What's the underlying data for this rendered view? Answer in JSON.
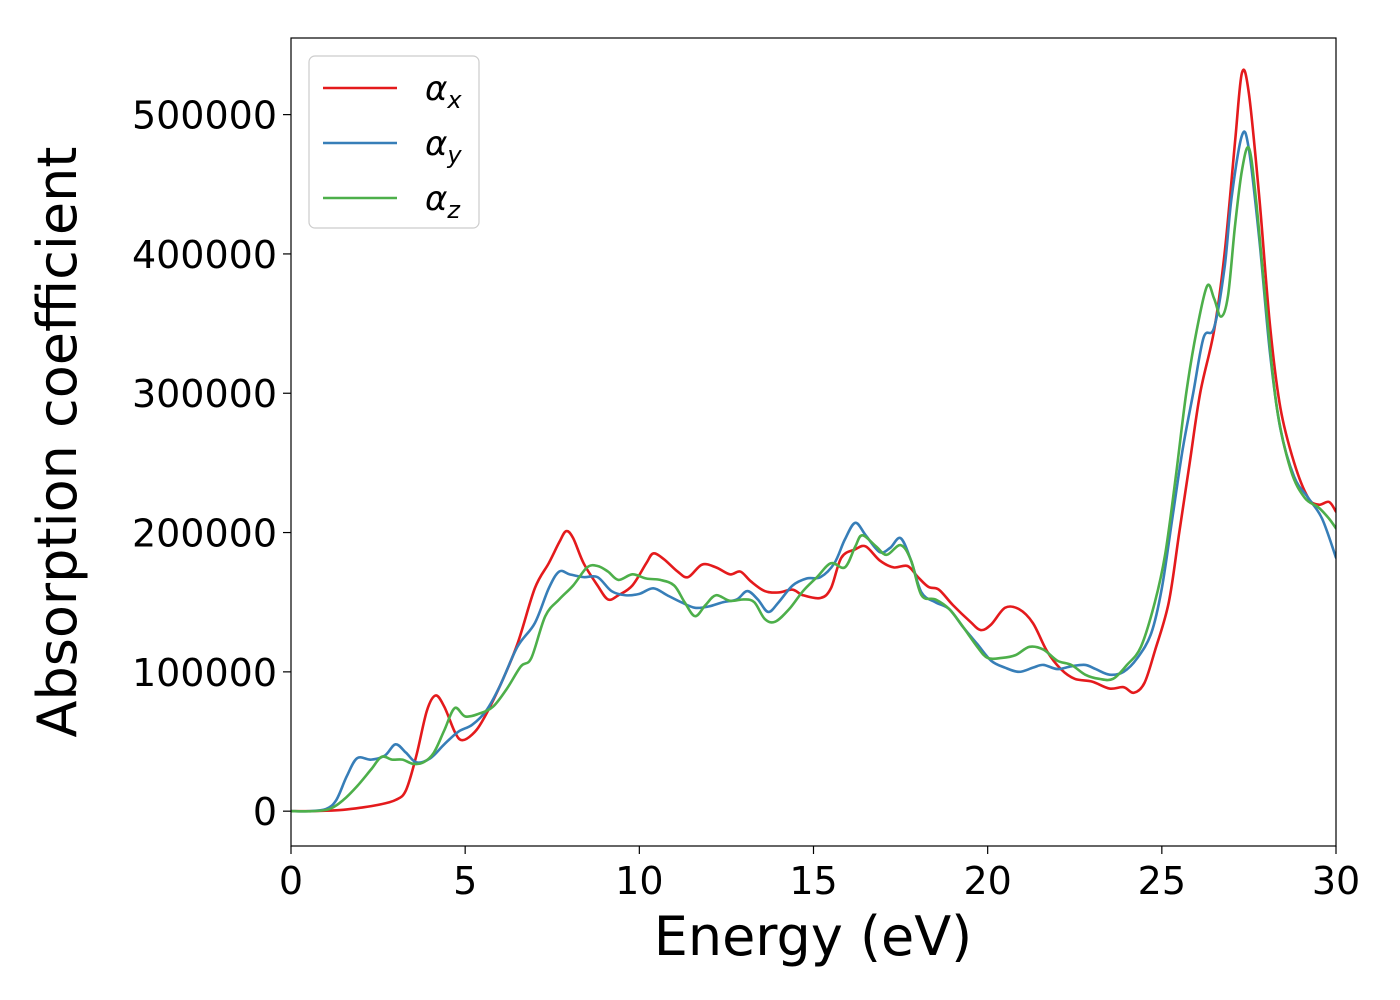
{
  "chart_data": {
    "type": "line",
    "title": "",
    "xlabel": "Energy (eV)",
    "ylabel": "Absorption coefficient",
    "xlim": [
      0,
      30
    ],
    "ylim": [
      -25000,
      555000
    ],
    "xticks": [
      0,
      5,
      10,
      15,
      20,
      25,
      30
    ],
    "yticks": [
      0,
      100000,
      200000,
      300000,
      400000,
      500000
    ],
    "grid": false,
    "legend_position": "top-left",
    "series": [
      {
        "name": "α",
        "subscript": "x",
        "color": "#e41a1c",
        "points": [
          [
            0,
            0
          ],
          [
            0.5,
            0
          ],
          [
            1,
            300
          ],
          [
            1.5,
            1000
          ],
          [
            2,
            2500
          ],
          [
            2.5,
            4500
          ],
          [
            3,
            8000
          ],
          [
            3.3,
            15000
          ],
          [
            3.6,
            40000
          ],
          [
            3.9,
            72000
          ],
          [
            4.15,
            83000
          ],
          [
            4.4,
            75000
          ],
          [
            4.7,
            57000
          ],
          [
            4.9,
            51000
          ],
          [
            5.2,
            55000
          ],
          [
            5.5,
            65000
          ],
          [
            6,
            90000
          ],
          [
            6.5,
            120000
          ],
          [
            7,
            160000
          ],
          [
            7.4,
            178000
          ],
          [
            7.7,
            193000
          ],
          [
            7.9,
            201000
          ],
          [
            8.1,
            196000
          ],
          [
            8.4,
            178000
          ],
          [
            8.8,
            162000
          ],
          [
            9.1,
            152000
          ],
          [
            9.4,
            155000
          ],
          [
            9.8,
            162000
          ],
          [
            10.2,
            178000
          ],
          [
            10.4,
            185000
          ],
          [
            10.7,
            181000
          ],
          [
            11.1,
            172000
          ],
          [
            11.4,
            168000
          ],
          [
            11.8,
            177000
          ],
          [
            12.2,
            175000
          ],
          [
            12.6,
            170000
          ],
          [
            12.9,
            172000
          ],
          [
            13.2,
            165000
          ],
          [
            13.6,
            158000
          ],
          [
            14,
            157000
          ],
          [
            14.4,
            159000
          ],
          [
            14.7,
            155000
          ],
          [
            15.2,
            153000
          ],
          [
            15.5,
            160000
          ],
          [
            15.8,
            182000
          ],
          [
            16.2,
            188000
          ],
          [
            16.5,
            190000
          ],
          [
            16.9,
            180000
          ],
          [
            17.3,
            175000
          ],
          [
            17.7,
            176000
          ],
          [
            18,
            168000
          ],
          [
            18.3,
            161000
          ],
          [
            18.6,
            159000
          ],
          [
            19,
            148000
          ],
          [
            19.5,
            136000
          ],
          [
            19.8,
            130000
          ],
          [
            20.1,
            134000
          ],
          [
            20.5,
            146000
          ],
          [
            20.9,
            145000
          ],
          [
            21.3,
            135000
          ],
          [
            21.7,
            115000
          ],
          [
            22.1,
            102000
          ],
          [
            22.5,
            95000
          ],
          [
            23,
            93000
          ],
          [
            23.5,
            88000
          ],
          [
            23.9,
            89000
          ],
          [
            24.2,
            85000
          ],
          [
            24.5,
            92000
          ],
          [
            24.8,
            115000
          ],
          [
            25.2,
            150000
          ],
          [
            25.5,
            200000
          ],
          [
            25.8,
            250000
          ],
          [
            26.1,
            300000
          ],
          [
            26.5,
            345000
          ],
          [
            26.8,
            400000
          ],
          [
            27.1,
            480000
          ],
          [
            27.3,
            530000
          ],
          [
            27.5,
            515000
          ],
          [
            27.8,
            440000
          ],
          [
            28.1,
            350000
          ],
          [
            28.4,
            290000
          ],
          [
            28.8,
            250000
          ],
          [
            29.2,
            225000
          ],
          [
            29.5,
            220000
          ],
          [
            29.8,
            222000
          ],
          [
            30,
            215000
          ]
        ]
      },
      {
        "name": "α",
        "subscript": "y",
        "color": "#377eb8",
        "points": [
          [
            0,
            0
          ],
          [
            0.5,
            0
          ],
          [
            1,
            1500
          ],
          [
            1.3,
            8000
          ],
          [
            1.6,
            25000
          ],
          [
            1.9,
            38000
          ],
          [
            2.3,
            37000
          ],
          [
            2.7,
            40000
          ],
          [
            3,
            48000
          ],
          [
            3.3,
            42000
          ],
          [
            3.6,
            35000
          ],
          [
            4,
            38000
          ],
          [
            4.4,
            48000
          ],
          [
            4.8,
            57000
          ],
          [
            5.2,
            62000
          ],
          [
            5.6,
            72000
          ],
          [
            6,
            90000
          ],
          [
            6.5,
            118000
          ],
          [
            7,
            135000
          ],
          [
            7.4,
            160000
          ],
          [
            7.7,
            172000
          ],
          [
            8,
            170000
          ],
          [
            8.4,
            168000
          ],
          [
            8.8,
            168000
          ],
          [
            9.2,
            158000
          ],
          [
            9.6,
            155000
          ],
          [
            10,
            156000
          ],
          [
            10.4,
            160000
          ],
          [
            10.8,
            155000
          ],
          [
            11.2,
            150000
          ],
          [
            11.6,
            146000
          ],
          [
            12,
            147000
          ],
          [
            12.4,
            150000
          ],
          [
            12.8,
            152000
          ],
          [
            13.1,
            158000
          ],
          [
            13.4,
            152000
          ],
          [
            13.7,
            143000
          ],
          [
            14,
            150000
          ],
          [
            14.4,
            162000
          ],
          [
            14.8,
            167000
          ],
          [
            15.2,
            168000
          ],
          [
            15.6,
            178000
          ],
          [
            15.9,
            195000
          ],
          [
            16.2,
            207000
          ],
          [
            16.5,
            198000
          ],
          [
            16.9,
            186000
          ],
          [
            17.2,
            189000
          ],
          [
            17.5,
            196000
          ],
          [
            17.8,
            180000
          ],
          [
            18.1,
            157000
          ],
          [
            18.5,
            150000
          ],
          [
            18.9,
            145000
          ],
          [
            19.3,
            132000
          ],
          [
            19.7,
            120000
          ],
          [
            20.1,
            108000
          ],
          [
            20.5,
            103000
          ],
          [
            20.9,
            100000
          ],
          [
            21.3,
            103000
          ],
          [
            21.6,
            105000
          ],
          [
            22,
            102000
          ],
          [
            22.4,
            104000
          ],
          [
            22.8,
            105000
          ],
          [
            23.1,
            102000
          ],
          [
            23.5,
            98000
          ],
          [
            23.9,
            100000
          ],
          [
            24.3,
            110000
          ],
          [
            24.7,
            128000
          ],
          [
            25,
            160000
          ],
          [
            25.3,
            210000
          ],
          [
            25.6,
            260000
          ],
          [
            25.9,
            300000
          ],
          [
            26.2,
            340000
          ],
          [
            26.5,
            347000
          ],
          [
            26.8,
            390000
          ],
          [
            27,
            440000
          ],
          [
            27.3,
            485000
          ],
          [
            27.5,
            475000
          ],
          [
            27.8,
            410000
          ],
          [
            28.1,
            330000
          ],
          [
            28.4,
            275000
          ],
          [
            28.8,
            240000
          ],
          [
            29.2,
            225000
          ],
          [
            29.6,
            210000
          ],
          [
            30,
            182000
          ]
        ]
      },
      {
        "name": "α",
        "subscript": "z",
        "color": "#4daf4a",
        "points": [
          [
            0,
            0
          ],
          [
            0.6,
            0
          ],
          [
            1.1,
            1500
          ],
          [
            1.5,
            8000
          ],
          [
            1.9,
            18000
          ],
          [
            2.3,
            30000
          ],
          [
            2.6,
            39000
          ],
          [
            2.9,
            37000
          ],
          [
            3.2,
            37000
          ],
          [
            3.5,
            34000
          ],
          [
            3.8,
            35000
          ],
          [
            4.1,
            42000
          ],
          [
            4.4,
            58000
          ],
          [
            4.7,
            74000
          ],
          [
            5,
            68000
          ],
          [
            5.4,
            70000
          ],
          [
            5.8,
            75000
          ],
          [
            6.2,
            88000
          ],
          [
            6.6,
            104000
          ],
          [
            6.9,
            110000
          ],
          [
            7.3,
            140000
          ],
          [
            7.7,
            152000
          ],
          [
            8.1,
            162000
          ],
          [
            8.5,
            175000
          ],
          [
            8.8,
            176000
          ],
          [
            9.1,
            172000
          ],
          [
            9.4,
            166000
          ],
          [
            9.8,
            170000
          ],
          [
            10.2,
            167000
          ],
          [
            10.6,
            166000
          ],
          [
            11,
            162000
          ],
          [
            11.3,
            150000
          ],
          [
            11.6,
            140000
          ],
          [
            11.9,
            148000
          ],
          [
            12.2,
            155000
          ],
          [
            12.6,
            151000
          ],
          [
            13,
            152000
          ],
          [
            13.3,
            150000
          ],
          [
            13.6,
            138000
          ],
          [
            13.9,
            136000
          ],
          [
            14.3,
            145000
          ],
          [
            14.7,
            158000
          ],
          [
            15.1,
            168000
          ],
          [
            15.5,
            178000
          ],
          [
            15.9,
            175000
          ],
          [
            16.2,
            190000
          ],
          [
            16.4,
            198000
          ],
          [
            16.8,
            190000
          ],
          [
            17.1,
            184000
          ],
          [
            17.5,
            191000
          ],
          [
            17.8,
            180000
          ],
          [
            18.1,
            155000
          ],
          [
            18.5,
            152000
          ],
          [
            18.9,
            145000
          ],
          [
            19.3,
            132000
          ],
          [
            19.7,
            118000
          ],
          [
            20,
            110000
          ],
          [
            20.4,
            110000
          ],
          [
            20.8,
            112000
          ],
          [
            21.2,
            118000
          ],
          [
            21.6,
            116000
          ],
          [
            22,
            108000
          ],
          [
            22.4,
            105000
          ],
          [
            22.8,
            98000
          ],
          [
            23.2,
            95000
          ],
          [
            23.6,
            95000
          ],
          [
            24,
            105000
          ],
          [
            24.4,
            118000
          ],
          [
            24.8,
            150000
          ],
          [
            25.1,
            185000
          ],
          [
            25.4,
            240000
          ],
          [
            25.7,
            300000
          ],
          [
            26,
            345000
          ],
          [
            26.3,
            377000
          ],
          [
            26.5,
            368000
          ],
          [
            26.7,
            355000
          ],
          [
            26.9,
            370000
          ],
          [
            27.1,
            420000
          ],
          [
            27.3,
            460000
          ],
          [
            27.5,
            476000
          ],
          [
            27.7,
            440000
          ],
          [
            28,
            360000
          ],
          [
            28.3,
            290000
          ],
          [
            28.7,
            245000
          ],
          [
            29.1,
            225000
          ],
          [
            29.5,
            218000
          ],
          [
            29.8,
            210000
          ],
          [
            30,
            203000
          ]
        ]
      }
    ]
  }
}
